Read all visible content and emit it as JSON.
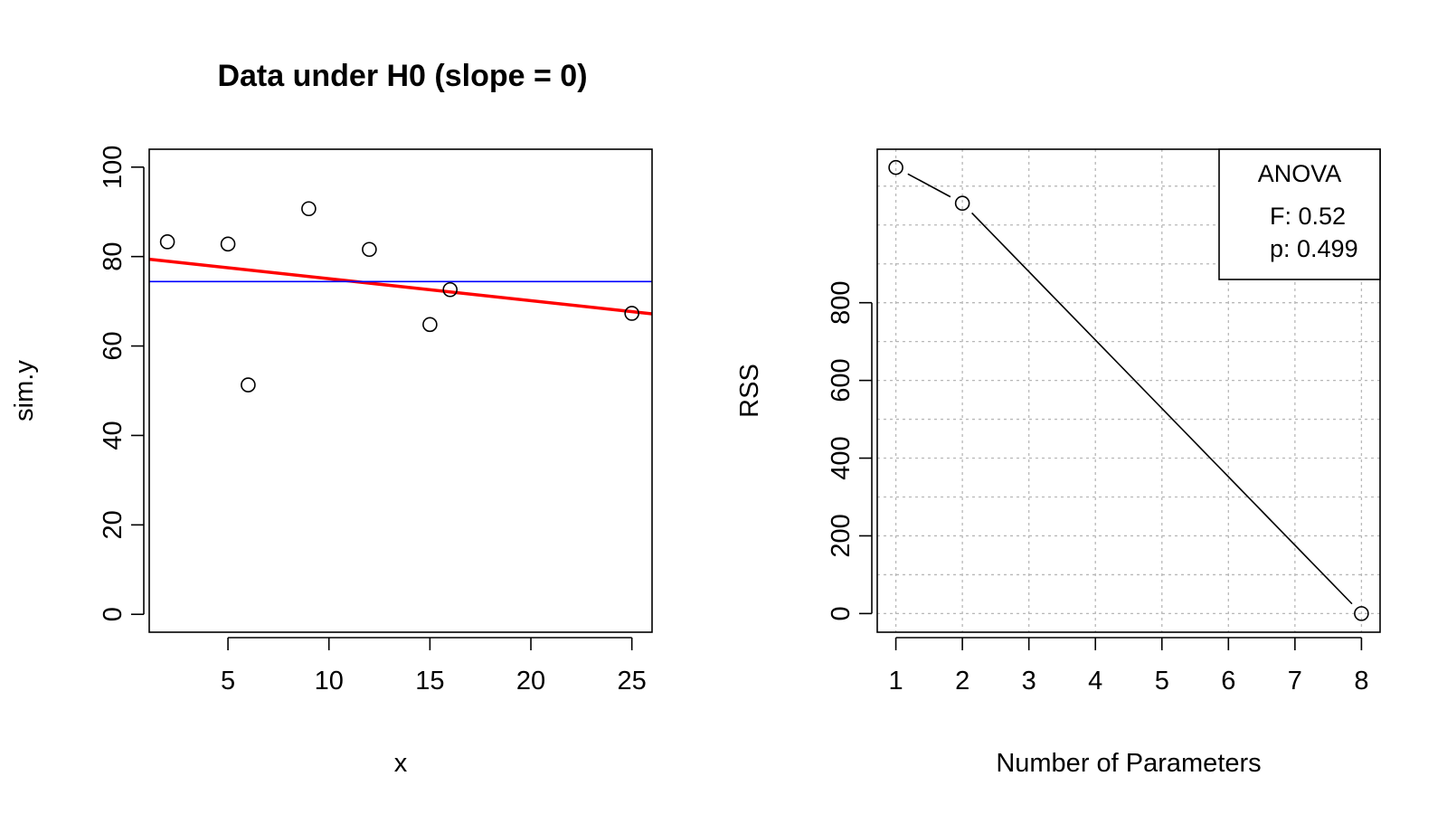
{
  "chart_data": [
    {
      "type": "scatter",
      "title": "Data under H0 (slope = 0)",
      "xlabel": "x",
      "ylabel": "sim.y",
      "xlim": [
        1.1,
        26
      ],
      "ylim": [
        -4,
        104
      ],
      "xticks": [
        5,
        10,
        15,
        20,
        25
      ],
      "yticks": [
        0,
        20,
        40,
        60,
        80,
        100
      ],
      "points": {
        "x": [
          2,
          5,
          6,
          9,
          12,
          15,
          16,
          25
        ],
        "y": [
          83.3,
          82.8,
          51.3,
          90.7,
          81.6,
          64.8,
          72.6,
          67.3
        ]
      },
      "lines": [
        {
          "kind": "fit",
          "color": "#ff0000",
          "x": [
            1.1,
            26
          ],
          "y": [
            79.4,
            67.2
          ]
        },
        {
          "kind": "mean",
          "color": "#0000ff",
          "y": 74.4
        }
      ],
      "grid": false
    },
    {
      "type": "line",
      "title": "",
      "xlabel": "Number of Parameters",
      "ylabel": "RSS",
      "xlim": [
        0.72,
        8.28
      ],
      "ylim": [
        -48,
        1195
      ],
      "xticks": [
        1,
        2,
        3,
        4,
        5,
        6,
        7,
        8
      ],
      "yticks": [
        0,
        200,
        400,
        600,
        800
      ],
      "grid_y": [
        0,
        100,
        200,
        300,
        400,
        500,
        600,
        700,
        800,
        900,
        1000,
        1100
      ],
      "points": {
        "x": [
          1,
          2,
          8
        ],
        "y": [
          1148,
          1056,
          0
        ]
      },
      "grid": true,
      "legend": {
        "position": "top-right",
        "title": "ANOVA",
        "lines": [
          "F: 0.52",
          "p: 0.499"
        ]
      }
    }
  ]
}
